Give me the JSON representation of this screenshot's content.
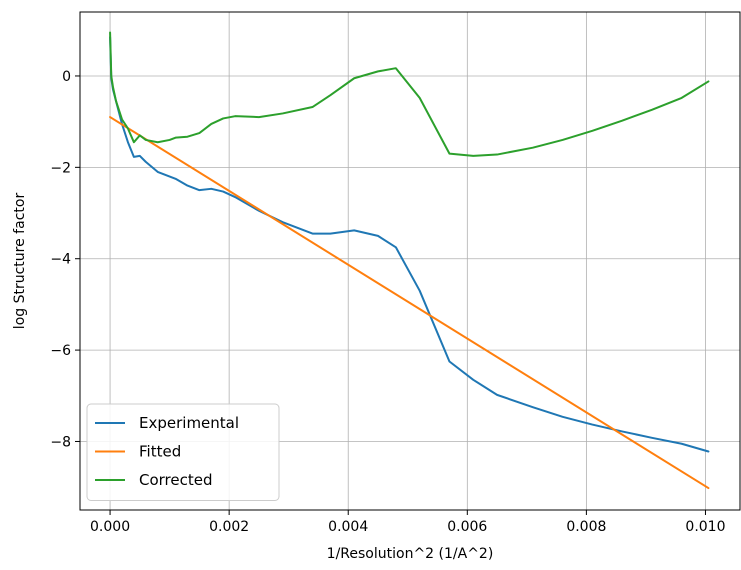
{
  "chart_data": {
    "type": "line",
    "title": "",
    "xlabel": "1/Resolution^2 (1/A^2)",
    "ylabel": "log Structure factor",
    "xlim": [
      -0.000505,
      0.01058
    ],
    "ylim": [
      -9.5,
      1.4
    ],
    "xticks": [
      0.0,
      0.002,
      0.004,
      0.006,
      0.008,
      0.01
    ],
    "xtick_labels": [
      "0.000",
      "0.002",
      "0.004",
      "0.006",
      "0.008",
      "0.010"
    ],
    "yticks": [
      0,
      -2,
      -4,
      -6,
      -8
    ],
    "ytick_labels": [
      "0",
      "−2",
      "−4",
      "−6",
      "−8"
    ],
    "grid": true,
    "legend_position": "lower-left",
    "series": [
      {
        "name": "Experimental",
        "color": "#1f77b4",
        "x": [
          0.0,
          2e-05,
          5e-05,
          0.0001,
          0.00015,
          0.0002,
          0.0003,
          0.0004,
          0.0005,
          0.0006,
          0.0008,
          0.0011,
          0.0013,
          0.0015,
          0.0017,
          0.0019,
          0.0021,
          0.0025,
          0.0029,
          0.0034,
          0.0037,
          0.0041,
          0.0045,
          0.0048,
          0.0052,
          0.0057,
          0.0061,
          0.0065,
          0.0071,
          0.0076,
          0.0081,
          0.0086,
          0.0091,
          0.0096,
          0.01005
        ],
        "y": [
          0.85,
          -0.05,
          -0.3,
          -0.55,
          -0.8,
          -1.05,
          -1.45,
          -1.77,
          -1.75,
          -1.88,
          -2.1,
          -2.25,
          -2.4,
          -2.5,
          -2.47,
          -2.53,
          -2.65,
          -2.95,
          -3.2,
          -3.45,
          -3.45,
          -3.38,
          -3.5,
          -3.75,
          -4.7,
          -6.25,
          -6.65,
          -6.98,
          -7.25,
          -7.46,
          -7.63,
          -7.78,
          -7.92,
          -8.05,
          -8.22
        ]
      },
      {
        "name": "Fitted",
        "color": "#ff7f0e",
        "x": [
          0.0,
          0.01005
        ],
        "y": [
          -0.9,
          -9.02
        ]
      },
      {
        "name": "Corrected",
        "color": "#2ca02c",
        "x": [
          0.0,
          2e-05,
          5e-05,
          0.0001,
          0.00015,
          0.0002,
          0.0003,
          0.0004,
          0.0005,
          0.0006,
          0.0008,
          0.001,
          0.0011,
          0.0013,
          0.0015,
          0.0017,
          0.0019,
          0.0021,
          0.0025,
          0.0029,
          0.0034,
          0.0037,
          0.0041,
          0.0045,
          0.0048,
          0.0052,
          0.0057,
          0.0061,
          0.0065,
          0.0071,
          0.0076,
          0.0081,
          0.0086,
          0.0091,
          0.0096,
          0.01005
        ],
        "y": [
          0.95,
          0.0,
          -0.25,
          -0.55,
          -0.75,
          -0.95,
          -1.15,
          -1.45,
          -1.3,
          -1.4,
          -1.45,
          -1.4,
          -1.35,
          -1.33,
          -1.25,
          -1.05,
          -0.93,
          -0.88,
          -0.9,
          -0.82,
          -0.68,
          -0.42,
          -0.05,
          0.1,
          0.17,
          -0.48,
          -1.7,
          -1.75,
          -1.72,
          -1.57,
          -1.4,
          -1.2,
          -0.98,
          -0.74,
          -0.48,
          -0.12
        ]
      }
    ]
  }
}
